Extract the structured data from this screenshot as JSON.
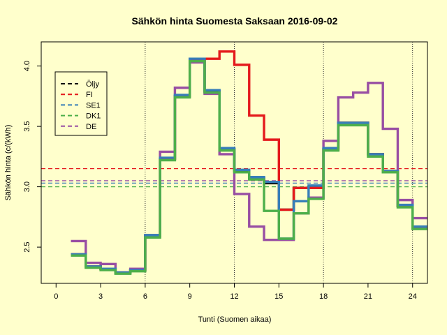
{
  "chart_data": {
    "type": "line",
    "title": "Sähkön hinta Suomesta Saksaan 2016-09-02",
    "xlabel": "Tunti (Suomen aikaa)",
    "ylabel": "Sähkön hinta (c/(kWh)",
    "xlim": [
      -1,
      25
    ],
    "ylim": [
      2.2,
      4.2
    ],
    "x_ticks": [
      0,
      3,
      6,
      9,
      12,
      15,
      18,
      21,
      24
    ],
    "y_ticks": [
      2.5,
      3.0,
      3.5,
      4.0
    ],
    "vlines": [
      6,
      12,
      18,
      24
    ],
    "legend_position": "top-left",
    "series": [
      {
        "name": "Öljy",
        "color": "#000000",
        "values": [
          2.44,
          2.34,
          2.32,
          2.29,
          2.31,
          2.59,
          3.23,
          3.75,
          4.05,
          3.79,
          3.31,
          3.13,
          3.07,
          3.03,
          2.81,
          2.99,
          2.99,
          3.31,
          3.53,
          3.53,
          3.27,
          3.13,
          2.84,
          2.66
        ],
        "mean": null
      },
      {
        "name": "FI",
        "color": "#e41a1c",
        "values": [
          2.44,
          2.34,
          2.32,
          2.29,
          2.31,
          2.59,
          3.23,
          3.75,
          4.05,
          4.06,
          4.12,
          4.01,
          3.59,
          3.39,
          2.81,
          2.99,
          2.99,
          3.31,
          3.53,
          3.53,
          3.27,
          3.13,
          2.84,
          2.66
        ],
        "mean": 3.15
      },
      {
        "name": "SE1",
        "color": "#377eb8",
        "values": [
          2.44,
          2.34,
          2.32,
          2.29,
          2.31,
          2.6,
          3.24,
          3.76,
          4.06,
          3.8,
          3.32,
          3.14,
          3.08,
          3.04,
          2.57,
          2.88,
          3.01,
          3.32,
          3.53,
          3.53,
          3.27,
          3.13,
          2.85,
          2.67
        ],
        "mean": 3.03
      },
      {
        "name": "DK1",
        "color": "#4daf4a",
        "values": [
          2.43,
          2.33,
          2.31,
          2.28,
          2.3,
          2.58,
          3.22,
          3.74,
          4.04,
          3.78,
          3.3,
          3.12,
          3.06,
          2.8,
          2.57,
          2.78,
          2.9,
          3.3,
          3.51,
          3.51,
          3.25,
          3.12,
          2.83,
          2.65
        ],
        "mean": 3.0
      },
      {
        "name": "DE",
        "color": "#984ea3",
        "values": [
          2.55,
          2.37,
          2.36,
          2.29,
          2.32,
          2.6,
          3.29,
          3.82,
          4.03,
          3.77,
          3.27,
          2.94,
          2.67,
          2.56,
          2.56,
          2.78,
          2.91,
          3.38,
          3.74,
          3.78,
          3.86,
          3.48,
          2.89,
          2.74
        ],
        "mean": 3.05
      }
    ]
  }
}
